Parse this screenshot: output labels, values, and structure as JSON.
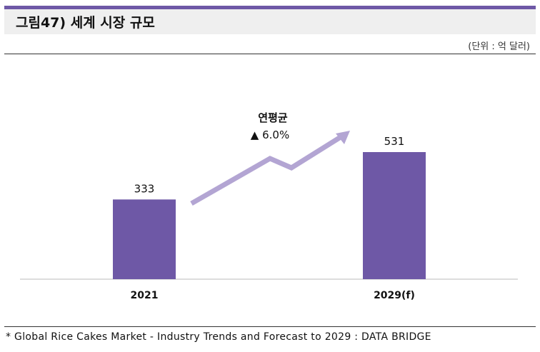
{
  "header": {
    "title": "그림47) 세계 시장 규모",
    "unit": "(단위 : 억 달러)"
  },
  "chart_data": {
    "type": "bar",
    "categories": [
      "2021",
      "2029(f)"
    ],
    "values": [
      333,
      531
    ],
    "annotation": {
      "line1": "연평균",
      "line2": "▲ 6.0%"
    },
    "bar_color": "#6e58a6",
    "arrow_color": "#b3a5d3",
    "grid": false
  },
  "footer": {
    "source": "* Global Rice Cakes Market - Industry Trends and Forecast to 2029 : DATA BRIDGE"
  }
}
